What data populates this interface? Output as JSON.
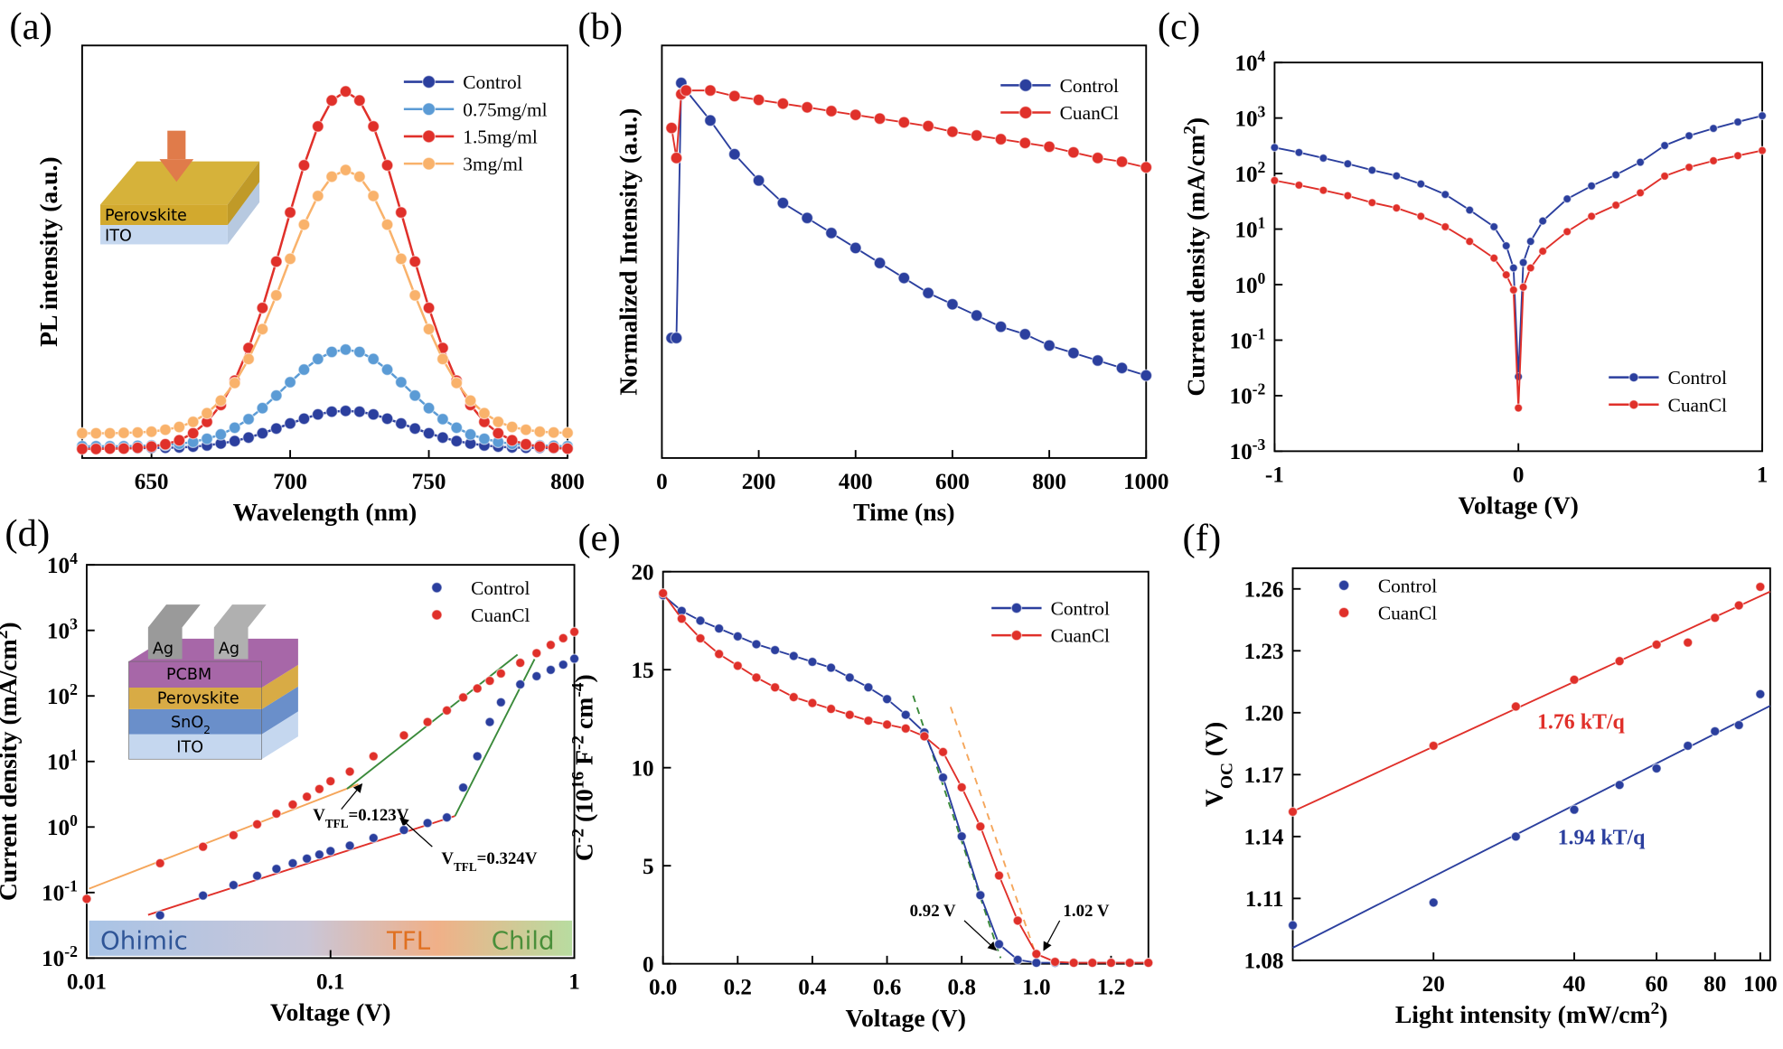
{
  "chart_data": [
    {
      "panel": "(a)",
      "type": "line",
      "xlabel": [
        {
          "text": "Wavelength (nm)"
        }
      ],
      "ylabel": [
        {
          "text": "PL intensity (a.u.)"
        }
      ],
      "x": [
        625,
        630,
        635,
        640,
        645,
        650,
        655,
        660,
        665,
        670,
        675,
        680,
        685,
        690,
        695,
        700,
        705,
        710,
        715,
        720,
        725,
        730,
        735,
        740,
        745,
        750,
        755,
        760,
        765,
        770,
        775,
        780,
        785,
        790,
        795,
        800
      ],
      "xlim": [
        625,
        800
      ],
      "xticks": [
        650,
        700,
        750,
        800
      ],
      "ylim": [
        0,
        105
      ],
      "legend": "upper right",
      "inset": [
        [
          {
            "text": "Perovskite"
          }
        ],
        [
          {
            "text": "ITO"
          }
        ]
      ],
      "series": [
        {
          "name": "Control",
          "color": "#2b3f9e",
          "values": [
            2.5,
            2.5,
            2.5,
            2.5,
            2.5,
            2.6,
            2.6,
            2.7,
            2.9,
            3.2,
            3.7,
            4.3,
            5.2,
            6.3,
            7.5,
            8.8,
            10.0,
            11.1,
            11.8,
            12.0,
            11.8,
            11.1,
            10.0,
            8.8,
            7.5,
            6.3,
            5.2,
            4.3,
            3.7,
            3.2,
            2.9,
            2.7,
            2.6,
            2.6,
            2.5,
            2.5
          ]
        },
        {
          "name": "0.75mg/ml",
          "color": "#5b9bd5",
          "values": [
            3,
            3,
            3,
            3,
            3.1,
            3.2,
            3.3,
            3.6,
            4.1,
            4.9,
            6.0,
            7.7,
            9.9,
            12.7,
            15.9,
            19.3,
            22.5,
            25.2,
            27.0,
            27.6,
            27.0,
            25.2,
            22.5,
            19.3,
            15.9,
            12.7,
            9.9,
            7.7,
            6.0,
            4.9,
            4.1,
            3.6,
            3.3,
            3.2,
            3.1,
            3.0
          ]
        },
        {
          "name": "1.5mg/ml",
          "color": "#e0302a",
          "values": [
            2.3,
            2.3,
            2.4,
            2.4,
            2.6,
            2.9,
            3.5,
            4.5,
            6.3,
            9.2,
            13.5,
            19.7,
            28.0,
            38.2,
            50.0,
            62.5,
            74.5,
            84.4,
            91.0,
            93.3,
            91.0,
            84.4,
            74.5,
            62.5,
            50.0,
            38.2,
            28.0,
            19.7,
            13.5,
            9.2,
            6.3,
            4.5,
            3.5,
            2.9,
            2.6,
            2.4
          ]
        },
        {
          "name": "3mg/ml",
          "color": "#f9b26b",
          "values": [
            6.3,
            6.3,
            6.3,
            6.4,
            6.5,
            6.7,
            7.2,
            7.9,
            9.2,
            11.4,
            14.6,
            19.1,
            25.2,
            32.8,
            41.4,
            50.7,
            59.4,
            66.7,
            71.6,
            73.3,
            71.6,
            66.7,
            59.4,
            50.7,
            41.4,
            32.8,
            25.2,
            19.1,
            14.6,
            11.4,
            9.2,
            7.9,
            7.2,
            6.7,
            6.5,
            6.4
          ]
        }
      ]
    },
    {
      "panel": "(b)",
      "type": "line",
      "xlabel": [
        {
          "text": "Time (ns)"
        }
      ],
      "ylabel": [
        {
          "text": "Normalized Intensity (a.u.)"
        }
      ],
      "x": [
        20,
        30,
        40,
        50,
        100,
        150,
        200,
        250,
        300,
        350,
        400,
        450,
        500,
        550,
        600,
        650,
        700,
        750,
        800,
        850,
        900,
        950,
        1000
      ],
      "xlim": [
        0,
        1000
      ],
      "xticks": [
        0,
        200,
        400,
        600,
        800,
        1000
      ],
      "ylim": [
        0,
        1.1
      ],
      "legend": "upper right",
      "series": [
        {
          "name": "Control",
          "color": "#2b3f9e",
          "values": [
            0.32,
            0.32,
            1.0,
            0.98,
            0.9,
            0.81,
            0.74,
            0.68,
            0.64,
            0.6,
            0.56,
            0.52,
            0.48,
            0.44,
            0.41,
            0.38,
            0.35,
            0.33,
            0.3,
            0.28,
            0.26,
            0.24,
            0.22
          ]
        },
        {
          "name": "CuanCl",
          "color": "#e0302a",
          "values": [
            0.88,
            0.8,
            0.97,
            0.98,
            0.98,
            0.965,
            0.955,
            0.945,
            0.935,
            0.925,
            0.915,
            0.905,
            0.895,
            0.885,
            0.87,
            0.86,
            0.85,
            0.84,
            0.83,
            0.815,
            0.8,
            0.79,
            0.775
          ]
        }
      ]
    },
    {
      "panel": "(c)",
      "type": "line",
      "yscale": "log",
      "xlabel": [
        {
          "text": "Voltage (V)"
        }
      ],
      "ylabel": [
        {
          "text": "Current density (mA/cm"
        },
        {
          "sup": "2"
        },
        {
          "text": ")"
        }
      ],
      "x": [
        -1,
        -0.9,
        -0.8,
        -0.7,
        -0.6,
        -0.5,
        -0.4,
        -0.3,
        -0.2,
        -0.1,
        -0.05,
        -0.02,
        0,
        0.02,
        0.05,
        0.1,
        0.2,
        0.3,
        0.4,
        0.5,
        0.6,
        0.7,
        0.8,
        0.9,
        1
      ],
      "xlim": [
        -1,
        1
      ],
      "xticks": [
        -1,
        0,
        1
      ],
      "ylim": [
        0.001,
        10000
      ],
      "yticks": [
        {
          "value": 0.001,
          "label": "10",
          "power": "-3"
        },
        {
          "value": 0.01,
          "label": "10",
          "power": "-2"
        },
        {
          "value": 0.1,
          "label": "10",
          "power": "-1"
        },
        {
          "value": 1,
          "label": "10",
          "power": "0"
        },
        {
          "value": 10,
          "label": "10",
          "power": "1"
        },
        {
          "value": 100,
          "label": "10",
          "power": "2"
        },
        {
          "value": 1000,
          "label": "10",
          "power": "3"
        },
        {
          "value": 10000,
          "label": "10",
          "power": "4"
        }
      ],
      "legend": "lower right",
      "series": [
        {
          "name": "Control",
          "color": "#2b3f9e",
          "values": [
            295,
            240,
            190,
            150,
            115,
            91,
            65,
            42,
            22,
            11,
            5,
            2,
            0.022,
            2.5,
            6,
            14,
            35,
            60,
            95,
            160,
            320,
            480,
            650,
            850,
            1100
          ]
        },
        {
          "name": "CuanCl",
          "color": "#e0302a",
          "values": [
            75,
            62,
            50,
            40,
            30,
            24,
            17,
            11,
            6,
            3,
            1.5,
            0.8,
            0.006,
            0.9,
            2,
            4,
            9,
            17,
            27,
            45,
            90,
            130,
            170,
            210,
            260
          ]
        }
      ]
    },
    {
      "panel": "(d)",
      "type": "scatter",
      "xscale": "log",
      "yscale": "log",
      "xlabel": [
        {
          "text": "Voltage (V)"
        }
      ],
      "ylabel": [
        {
          "text": "Current density (mA/cm"
        },
        {
          "sup": "2"
        },
        {
          "text": ")"
        }
      ],
      "x": [
        0.01,
        0.02,
        0.03,
        0.04,
        0.05,
        0.06,
        0.07,
        0.08,
        0.09,
        0.1,
        0.12,
        0.15,
        0.2,
        0.25,
        0.3,
        0.35,
        0.4,
        0.45,
        0.5,
        0.6,
        0.7,
        0.8,
        0.9,
        1
      ],
      "xlim": [
        0.01,
        1
      ],
      "xticks": [
        0.01,
        0.1,
        1
      ],
      "ylim": [
        0.01,
        10000
      ],
      "yticks": [
        {
          "value": 0.01,
          "label": "10",
          "power": "-2"
        },
        {
          "value": 0.1,
          "label": "10",
          "power": "-1"
        },
        {
          "value": 1,
          "label": "10",
          "power": "0"
        },
        {
          "value": 10,
          "label": "10",
          "power": "1"
        },
        {
          "value": 100,
          "label": "10",
          "power": "2"
        },
        {
          "value": 1000,
          "label": "10",
          "power": "3"
        },
        {
          "value": 10000,
          "label": "10",
          "power": "4"
        }
      ],
      "legend": "upper right",
      "annotations": [
        [
          {
            "text": "V"
          },
          {
            "sub": "TFL"
          },
          {
            "text": "=0.123V"
          }
        ],
        [
          {
            "text": "V"
          },
          {
            "sub": "TFL"
          },
          {
            "text": "=0.324V"
          }
        ]
      ],
      "regions": [
        "Ohimic",
        "TFL",
        "Child"
      ],
      "inset": [
        [
          {
            "text": "Ag"
          }
        ],
        [
          {
            "text": "Ag"
          }
        ],
        [
          {
            "text": "PCBM"
          }
        ],
        [
          {
            "text": "Perovskite"
          }
        ],
        [
          {
            "text": "SnO"
          },
          {
            "sub": "2"
          }
        ],
        [
          {
            "text": "ITO"
          }
        ]
      ],
      "series": [
        {
          "name": "Control",
          "color": "#2b3f9e",
          "values": [
            null,
            0.045,
            0.09,
            0.13,
            0.18,
            0.23,
            0.28,
            0.33,
            0.38,
            0.43,
            0.52,
            0.68,
            0.9,
            1.15,
            1.4,
            4,
            12,
            40,
            80,
            150,
            200,
            250,
            300,
            370
          ]
        },
        {
          "name": "CuanCl",
          "color": "#e0302a",
          "values": [
            0.08,
            0.28,
            0.5,
            0.75,
            1.1,
            1.6,
            2.2,
            2.9,
            3.8,
            5,
            7,
            12,
            25,
            40,
            60,
            95,
            130,
            170,
            220,
            320,
            450,
            600,
            760,
            950
          ]
        }
      ]
    },
    {
      "panel": "(e)",
      "type": "line",
      "xlabel": [
        {
          "text": "Voltage (V)"
        }
      ],
      "ylabel": [
        {
          "text": "C"
        },
        {
          "sup": "-2"
        },
        {
          "text": " (10"
        },
        {
          "sup": "16"
        },
        {
          "text": " F"
        },
        {
          "sup": "-2"
        },
        {
          "text": " cm"
        },
        {
          "sup": "-4"
        },
        {
          "text": ")"
        }
      ],
      "x": [
        0,
        0.05,
        0.1,
        0.15,
        0.2,
        0.25,
        0.3,
        0.35,
        0.4,
        0.45,
        0.5,
        0.55,
        0.6,
        0.65,
        0.7,
        0.75,
        0.8,
        0.85,
        0.9,
        0.95,
        1.0,
        1.05,
        1.1,
        1.15,
        1.2,
        1.25,
        1.3
      ],
      "xlim": [
        0,
        1.3
      ],
      "xticks": [
        {
          "value": 0,
          "label": "0.0"
        },
        0.2,
        0.4,
        0.6,
        0.8,
        {
          "value": 1,
          "label": "1.0"
        },
        1.2
      ],
      "ylim": [
        0,
        20
      ],
      "yticks": [
        0,
        5,
        10,
        15,
        20
      ],
      "legend": "upper right",
      "annotations": [
        [
          {
            "text": "0.92 V"
          }
        ],
        [
          {
            "text": "1.02 V"
          }
        ]
      ],
      "series": [
        {
          "name": "Control",
          "color": "#2b3f9e",
          "values": [
            18.8,
            18,
            17.5,
            17.1,
            16.7,
            16.3,
            16,
            15.7,
            15.4,
            15.1,
            14.6,
            14.1,
            13.5,
            12.7,
            11.8,
            9.5,
            6.5,
            3.5,
            1.0,
            0.2,
            0.05,
            0.05,
            0.05,
            0.05,
            0.05,
            0.05,
            0.05
          ]
        },
        {
          "name": "CuanCl",
          "color": "#e0302a",
          "values": [
            18.9,
            17.6,
            16.6,
            15.8,
            15.2,
            14.6,
            14.1,
            13.6,
            13.3,
            13.0,
            12.7,
            12.4,
            12.2,
            12.0,
            11.6,
            10.8,
            9.0,
            7.0,
            4.5,
            2.2,
            0.5,
            0.1,
            0.05,
            0.05,
            0.05,
            0.05,
            0.05
          ]
        }
      ]
    },
    {
      "panel": "(f)",
      "type": "scatter",
      "xscale": "log",
      "fit": true,
      "xlabel": [
        {
          "text": "Light intensity (mW/cm"
        },
        {
          "sup": "2"
        },
        {
          "text": ")"
        }
      ],
      "ylabel": [
        {
          "text": "V"
        },
        {
          "sub": "OC"
        },
        {
          "text": " (V)"
        }
      ],
      "x": [
        10,
        20,
        30,
        40,
        50,
        60,
        70,
        80,
        90,
        100
      ],
      "xlim": [
        10,
        105
      ],
      "xticks": [
        20,
        40,
        60,
        80,
        100
      ],
      "ylim": [
        1.08,
        1.27
      ],
      "yticks": [
        1.08,
        1.11,
        1.14,
        1.17,
        {
          "value": 1.2,
          "label": "1.20"
        },
        1.23,
        1.26
      ],
      "legend": "upper left",
      "annotations": [
        [
          {
            "text": "1.76 kT/q"
          }
        ],
        [
          {
            "text": "1.94 kT/q"
          }
        ]
      ],
      "series": [
        {
          "name": "Control",
          "color": "#2b3f9e",
          "values": [
            1.097,
            1.108,
            1.14,
            1.153,
            1.165,
            1.173,
            1.184,
            1.191,
            1.194,
            1.209
          ]
        },
        {
          "name": "CuanCl",
          "color": "#e0302a",
          "values": [
            1.152,
            1.184,
            1.203,
            1.216,
            1.225,
            1.233,
            1.234,
            1.246,
            1.252,
            1.261
          ]
        }
      ]
    }
  ]
}
